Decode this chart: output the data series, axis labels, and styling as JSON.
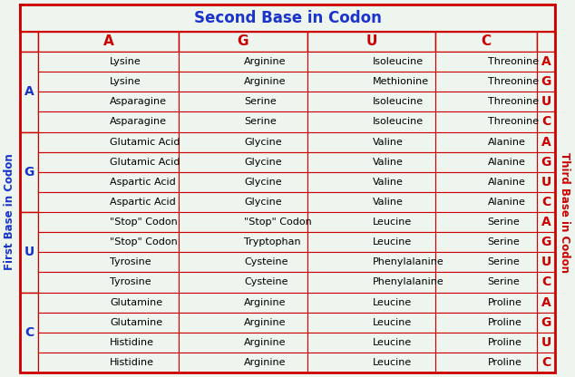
{
  "title": "Second Base in Codon",
  "left_label": "First Base in Codon",
  "right_label": "Third Base in Codon",
  "second_base_headers": [
    "A",
    "G",
    "U",
    "C"
  ],
  "first_base_groups": [
    "A",
    "G",
    "U",
    "C"
  ],
  "third_base_labels": [
    "A",
    "G",
    "U",
    "C",
    "A",
    "G",
    "U",
    "C",
    "A",
    "G",
    "U",
    "C",
    "A",
    "G",
    "U",
    "C"
  ],
  "rows": [
    [
      "Lysine",
      "Arginine",
      "Isoleucine",
      "Threonine"
    ],
    [
      "Lysine",
      "Arginine",
      "Methionine",
      "Threonine"
    ],
    [
      "Asparagine",
      "Serine",
      "Isoleucine",
      "Threonine"
    ],
    [
      "Asparagine",
      "Serine",
      "Isoleucine",
      "Threonine"
    ],
    [
      "Glutamic Acid",
      "Glycine",
      "Valine",
      "Alanine"
    ],
    [
      "Glutamic Acid",
      "Glycine",
      "Valine",
      "Alanine"
    ],
    [
      "Aspartic Acid",
      "Glycine",
      "Valine",
      "Alanine"
    ],
    [
      "Aspartic Acid",
      "Glycine",
      "Valine",
      "Alanine"
    ],
    [
      "\"Stop\" Codon",
      "\"Stop\" Codon",
      "Leucine",
      "Serine"
    ],
    [
      "\"Stop\" Codon",
      "Tryptophan",
      "Leucine",
      "Serine"
    ],
    [
      "Tyrosine",
      "Cysteine",
      "Phenylalanine",
      "Serine"
    ],
    [
      "Tyrosine",
      "Cysteine",
      "Phenylalanine",
      "Serine"
    ],
    [
      "Glutamine",
      "Arginine",
      "Leucine",
      "Proline"
    ],
    [
      "Glutamine",
      "Arginine",
      "Leucine",
      "Proline"
    ],
    [
      "Histidine",
      "Arginine",
      "Leucine",
      "Proline"
    ],
    [
      "Histidine",
      "Arginine",
      "Leucine",
      "Proline"
    ]
  ],
  "title_color": "#1a33cc",
  "header_color": "#cc0000",
  "first_base_color": "#1a33cc",
  "third_base_color": "#cc0000",
  "cell_text_color": "#000000",
  "border_color": "#cc0000",
  "bg_color": "#eef5ee",
  "title_fontsize": 12,
  "header_fontsize": 11,
  "cell_fontsize": 8.0,
  "side_label_fontsize": 8.5,
  "group_label_fontsize": 10,
  "third_label_fontsize": 10
}
